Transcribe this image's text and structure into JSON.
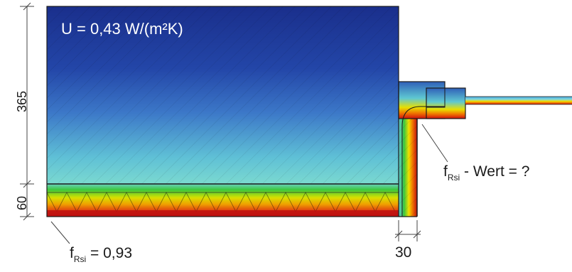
{
  "u_value_label": "U = 0,43 W/(m²K)",
  "frsi_bottom": {
    "symbol": "f",
    "subscript": "Rsi",
    "rest": " = 0,93"
  },
  "frsi_right": {
    "symbol": "f",
    "subscript": "Rsi",
    "rest": " - Wert = ?"
  },
  "dimensions": {
    "wall_thickness": "365",
    "insulation_thickness": "60",
    "gap_width": "30"
  },
  "colors": {
    "cold": "#1a2f8c",
    "mid_blue": "#3c78c8",
    "cyan": "#5fc8d2",
    "green": "#3cc83c",
    "yellow": "#f0e000",
    "orange": "#f07800",
    "red": "#d01010",
    "dark_red": "#7a1010"
  }
}
